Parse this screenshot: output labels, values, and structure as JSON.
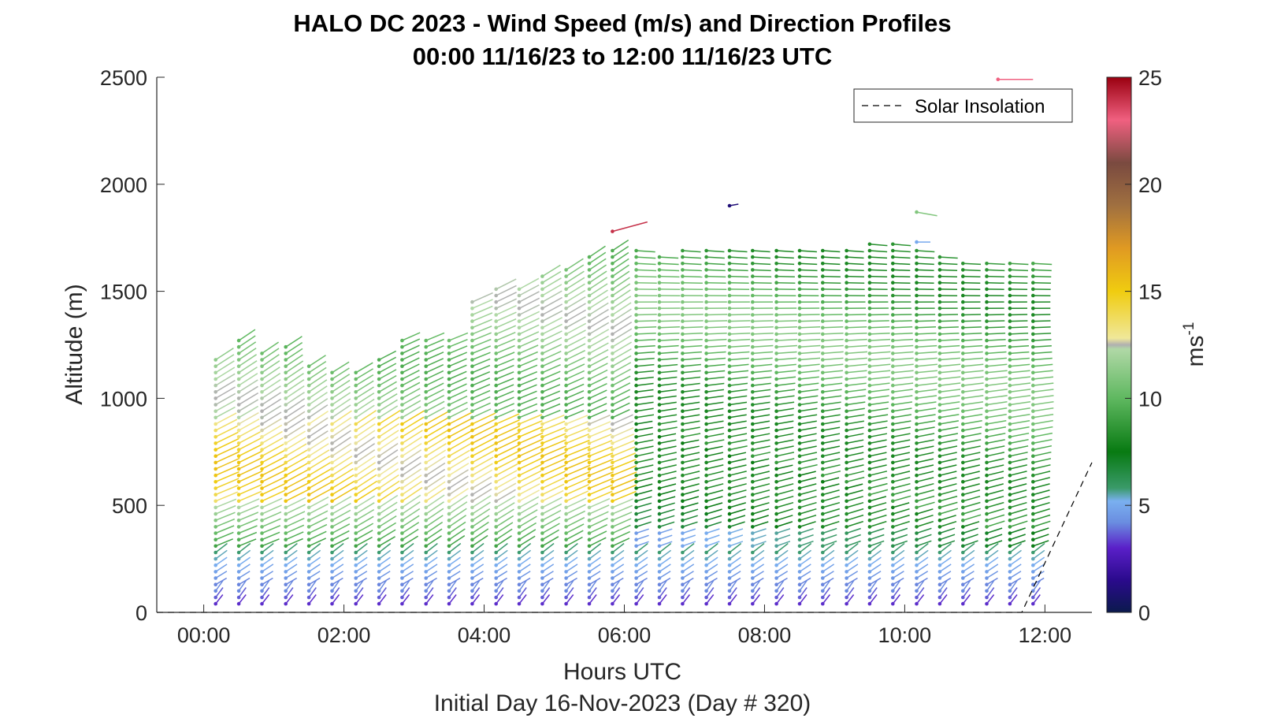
{
  "chart_data": {
    "type": "quiver",
    "title": "HALO DC 2023 - Wind Speed (m/s) and Direction Profiles",
    "subtitle": "00:00 11/16/23 to 12:00 11/16/23  UTC",
    "xlabel": "Hours UTC",
    "xlabel2": "Initial Day 16-Nov-2023 (Day # 320)",
    "ylabel": "Altitude (m)",
    "xlim": [
      -0.67,
      12.67
    ],
    "ylim": [
      0,
      2500
    ],
    "x_ticks": [
      0,
      2,
      4,
      6,
      8,
      10,
      12
    ],
    "x_tick_labels": [
      "00:00",
      "02:00",
      "04:00",
      "06:00",
      "08:00",
      "10:00",
      "12:00"
    ],
    "y_ticks": [
      0,
      500,
      1000,
      1500,
      2000,
      2500
    ],
    "y_tick_labels": [
      "0",
      "500",
      "1000",
      "1500",
      "2000",
      "2500"
    ],
    "colorbar": {
      "label": "ms",
      "label_sup": "-1",
      "range": [
        0,
        25
      ],
      "ticks": [
        0,
        5,
        10,
        15,
        20,
        25
      ],
      "tick_labels": [
        "0",
        "5",
        "10",
        "15",
        "20",
        "25"
      ],
      "colors": [
        {
          "v": 0,
          "c": "#0b1a4d"
        },
        {
          "v": 1.5,
          "c": "#2a0a8c"
        },
        {
          "v": 3,
          "c": "#5a1fc8"
        },
        {
          "v": 4.2,
          "c": "#6a8de0"
        },
        {
          "v": 5.2,
          "c": "#7ab0f0"
        },
        {
          "v": 5.8,
          "c": "#3a9a6a"
        },
        {
          "v": 7.5,
          "c": "#087a12"
        },
        {
          "v": 10,
          "c": "#5fb860"
        },
        {
          "v": 12.3,
          "c": "#b0d8a6"
        },
        {
          "v": 12.5,
          "c": "#b0b0b0"
        },
        {
          "v": 12.8,
          "c": "#f0e89a"
        },
        {
          "v": 15,
          "c": "#f0cc10"
        },
        {
          "v": 17,
          "c": "#e09a22"
        },
        {
          "v": 19,
          "c": "#a07040"
        },
        {
          "v": 21,
          "c": "#7a4a40"
        },
        {
          "v": 23,
          "c": "#f06080"
        },
        {
          "v": 25,
          "c": "#9a0010"
        }
      ]
    },
    "legend": {
      "entries": [
        {
          "label": "Solar Insolation",
          "style": "dashed",
          "color": "#000000"
        }
      ],
      "position": "top-right"
    },
    "solar_insolation": {
      "x": [
        -0.67,
        11.67,
        12.67
      ],
      "y": [
        0,
        0,
        700
      ]
    },
    "profiles": {
      "times": [
        0.17,
        0.5,
        0.83,
        1.17,
        1.5,
        1.83,
        2.17,
        2.5,
        2.83,
        3.17,
        3.5,
        3.83,
        4.17,
        4.5,
        4.83,
        5.17,
        5.5,
        5.83,
        6.17,
        6.5,
        6.83,
        7.17,
        7.5,
        7.83,
        8.17,
        8.5,
        8.83,
        9.17,
        9.5,
        9.83,
        10.17,
        10.5,
        10.83,
        11.17,
        11.5,
        11.83
      ],
      "top_altitudes": [
        1200,
        1280,
        1220,
        1250,
        1160,
        1130,
        1130,
        1200,
        1280,
        1280,
        1290,
        1460,
        1530,
        1520,
        1590,
        1610,
        1660,
        1700,
        1690,
        1680,
        1690,
        1690,
        1700,
        1700,
        1690,
        1710,
        1700,
        1710,
        1720,
        1730,
        1700,
        1660,
        1650,
        1650,
        1650,
        1640
      ],
      "altitude_step_m": 30,
      "base_altitude_m": 40,
      "isolated_barbs": [
        {
          "t": 5.83,
          "alt": 1780,
          "speed": 24,
          "dir": 75
        },
        {
          "t": 7.5,
          "alt": 1900,
          "speed": 1,
          "dir": 80
        },
        {
          "t": 11.33,
          "alt": 2490,
          "speed": 23,
          "dir": 90
        },
        {
          "t": 10.17,
          "alt": 1870,
          "speed": 11,
          "dir": 100
        },
        {
          "t": 10.17,
          "alt": 1730,
          "speed": 5,
          "dir": 90
        }
      ]
    }
  }
}
